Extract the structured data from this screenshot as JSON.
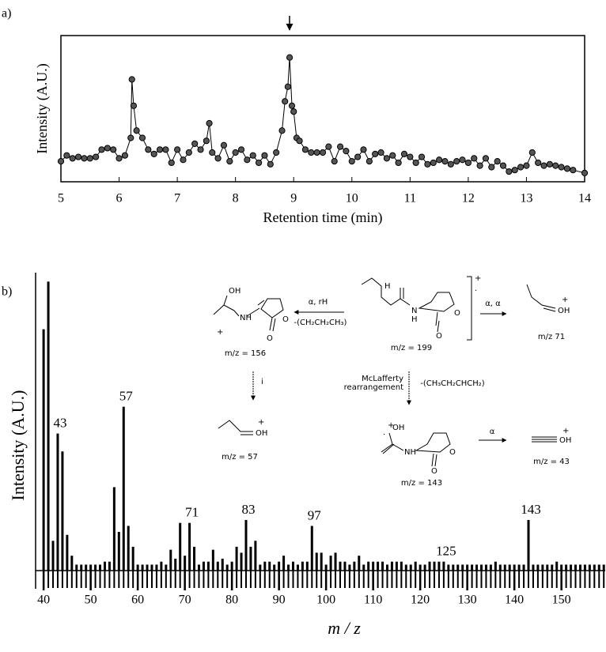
{
  "chart_data": [
    {
      "type": "line",
      "panel_label": "a)",
      "xlabel": "Retention time (min)",
      "ylabel": "Intensity (A.U.)",
      "color": "#555555",
      "marker": true,
      "xlim": [
        5,
        14
      ],
      "ylim": [
        0,
        100
      ],
      "xticks": [
        5,
        6,
        7,
        8,
        9,
        10,
        11,
        12,
        13,
        14
      ],
      "x": [
        5.0,
        5.1,
        5.2,
        5.3,
        5.4,
        5.5,
        5.6,
        5.7,
        5.8,
        5.9,
        6.0,
        6.1,
        6.2,
        6.22,
        6.25,
        6.3,
        6.4,
        6.5,
        6.6,
        6.7,
        6.8,
        6.9,
        7.0,
        7.1,
        7.2,
        7.3,
        7.4,
        7.5,
        7.55,
        7.6,
        7.7,
        7.8,
        7.9,
        8.0,
        8.1,
        8.2,
        8.3,
        8.4,
        8.5,
        8.6,
        8.7,
        8.8,
        8.85,
        8.9,
        8.93,
        8.97,
        9.0,
        9.05,
        9.1,
        9.2,
        9.3,
        9.4,
        9.5,
        9.6,
        9.7,
        9.8,
        9.9,
        10.0,
        10.1,
        10.2,
        10.3,
        10.4,
        10.5,
        10.6,
        10.7,
        10.8,
        10.9,
        11.0,
        11.1,
        11.2,
        11.3,
        11.4,
        11.5,
        11.6,
        11.7,
        11.8,
        11.9,
        12.0,
        12.1,
        12.2,
        12.3,
        12.4,
        12.5,
        12.6,
        12.7,
        12.8,
        12.9,
        13.0,
        13.1,
        13.2,
        13.3,
        13.4,
        13.5,
        13.6,
        13.7,
        13.8,
        14.0
      ],
      "values": [
        14,
        18,
        16,
        17,
        16,
        16,
        17,
        22,
        23,
        22,
        16,
        18,
        30,
        70,
        52,
        35,
        30,
        22,
        19,
        22,
        22,
        13,
        22,
        15,
        20,
        26,
        22,
        28,
        40,
        20,
        16,
        25,
        14,
        20,
        22,
        15,
        18,
        13,
        18,
        12,
        20,
        35,
        55,
        65,
        85,
        52,
        48,
        30,
        28,
        22,
        20,
        20,
        20,
        24,
        14,
        24,
        21,
        14,
        17,
        22,
        14,
        19,
        20,
        16,
        18,
        13,
        19,
        17,
        13,
        17,
        12,
        13,
        15,
        14,
        12,
        14,
        15,
        13,
        16,
        11,
        16,
        10,
        14,
        11,
        7,
        8,
        10,
        11,
        20,
        13,
        11,
        12,
        11,
        10,
        9,
        8,
        6
      ]
    },
    {
      "type": "bar",
      "panel_label": "b)",
      "xlabel": "m / z",
      "ylabel": "Intensity (A.U.)",
      "color": "#000000",
      "xlim": [
        38.3,
        159.3
      ],
      "ylim": [
        0,
        100
      ],
      "xticks": [
        40,
        50,
        60,
        70,
        80,
        90,
        100,
        110,
        120,
        130,
        140,
        150
      ],
      "x": [
        40,
        41,
        42,
        43,
        44,
        45,
        46,
        47,
        48,
        49,
        50,
        51,
        52,
        53,
        54,
        55,
        56,
        57,
        58,
        59,
        60,
        61,
        62,
        63,
        64,
        65,
        66,
        67,
        68,
        69,
        70,
        71,
        72,
        73,
        74,
        75,
        76,
        77,
        78,
        79,
        80,
        81,
        82,
        83,
        84,
        85,
        86,
        87,
        88,
        89,
        90,
        91,
        92,
        93,
        94,
        95,
        96,
        97,
        98,
        99,
        100,
        101,
        102,
        103,
        104,
        105,
        106,
        107,
        108,
        109,
        110,
        111,
        112,
        113,
        114,
        115,
        116,
        117,
        118,
        119,
        120,
        121,
        122,
        123,
        124,
        125,
        126,
        127,
        128,
        129,
        130,
        131,
        132,
        133,
        134,
        135,
        136,
        137,
        138,
        139,
        140,
        141,
        142,
        143,
        144,
        145,
        146,
        147,
        148,
        149,
        150,
        151,
        152,
        153,
        154,
        155,
        156,
        157,
        158,
        159
      ],
      "values": [
        81,
        97,
        10,
        46,
        40,
        12,
        5,
        2,
        2,
        2,
        2,
        2,
        2,
        3,
        3,
        28,
        13,
        55,
        15,
        8,
        2,
        2,
        2,
        2,
        2,
        3,
        2,
        7,
        4,
        16,
        5,
        16,
        8,
        2,
        3,
        3,
        7,
        3,
        4,
        2,
        3,
        8,
        6,
        17,
        8,
        10,
        2,
        3,
        3,
        2,
        3,
        5,
        2,
        3,
        2,
        3,
        3,
        15,
        6,
        6,
        2,
        5,
        6,
        3,
        3,
        2,
        3,
        5,
        2,
        3,
        3,
        3,
        3,
        2,
        3,
        3,
        3,
        2,
        2,
        3,
        2,
        2,
        3,
        3,
        3,
        3,
        2,
        2,
        2,
        2,
        2,
        2,
        2,
        2,
        2,
        2,
        3,
        2,
        2,
        2,
        2,
        2,
        2,
        17,
        2,
        2,
        2,
        2,
        2,
        3,
        2,
        2,
        2,
        2,
        2,
        2,
        2,
        2,
        2,
        2
      ],
      "peak_labels": [
        43,
        57,
        71,
        83,
        97,
        125,
        143
      ]
    }
  ],
  "scheme": {
    "labels": [
      "OH",
      "NH",
      "+",
      "O",
      "O",
      "m/z = 156",
      "α, rH",
      "-(CH₂CH₂CH₃)",
      "H",
      "N",
      "H",
      "O",
      "O",
      "+",
      "·",
      "m/z = 199",
      "α, α",
      "+",
      "OH",
      "m/z 71",
      "i",
      "+",
      "OH",
      "m/z = 57",
      "McLafferty",
      "rearrangement",
      "-(CH₃CH₂CHCH₂)",
      "+",
      "OH",
      "·",
      "NH",
      "O",
      "O",
      "m/z = 143",
      "α",
      "+",
      "OH",
      "m/z = 43"
    ]
  }
}
